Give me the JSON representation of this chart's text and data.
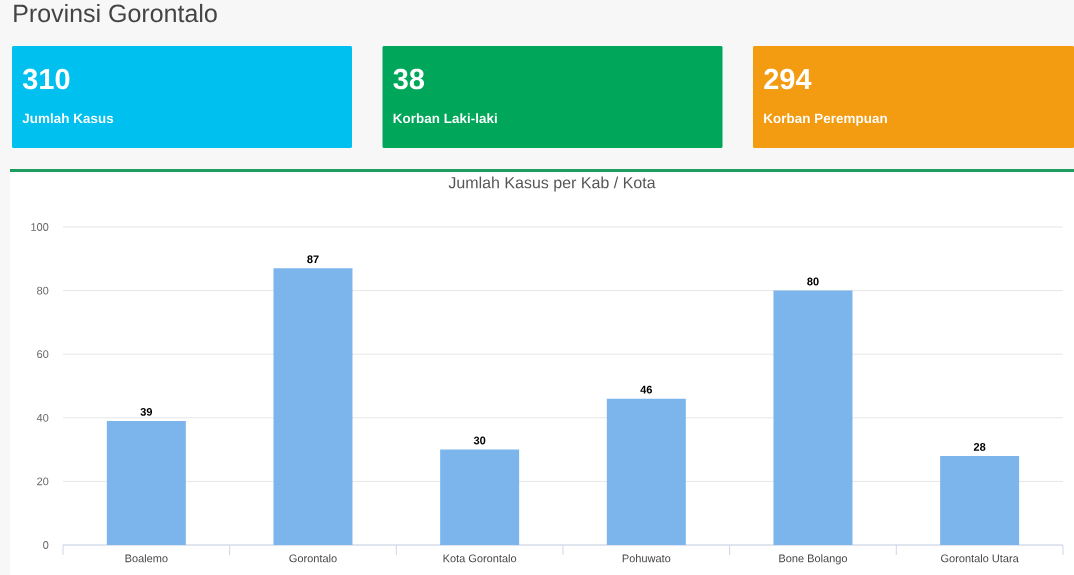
{
  "chart_data": [
    {
      "type": "other",
      "title": "Provinsi Gorontalo",
      "categories": [
        "Jumlah Kasus",
        "Korban Laki-laki",
        "Korban Perempuan"
      ],
      "values": [
        310,
        38,
        294
      ],
      "colors": [
        "#00c0ef",
        "#00a65a",
        "#f39c12"
      ],
      "data_labels": true
    },
    {
      "type": "bar",
      "title": "Jumlah Kasus per Kab / Kota",
      "categories": [
        "Boalemo",
        "Gorontalo",
        "Kota Gorontalo",
        "Pohuwato",
        "Bone Bolango",
        "Gorontalo Utara"
      ],
      "values": [
        39,
        87,
        30,
        46,
        80,
        28
      ],
      "color": "#7cb5ec",
      "ylim": [
        0,
        100
      ],
      "yticks": [
        0,
        20,
        40,
        60,
        80,
        100
      ],
      "grid": "y",
      "data_labels": true
    }
  ]
}
